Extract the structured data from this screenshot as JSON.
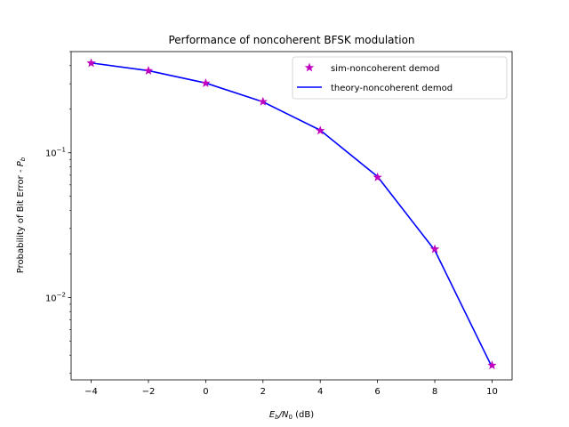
{
  "chart_data": {
    "type": "line",
    "title": "Performance of noncoherent BFSK modulation",
    "xlabel": {
      "main": "E",
      "sub1": "b",
      "slash": "/N",
      "sub2": "0",
      "unit": " (dB)"
    },
    "ylabel": {
      "main": "Probability of Bit Error - ",
      "var": "P",
      "sub": "b"
    },
    "x": [
      -4,
      -2,
      0,
      2,
      4,
      6,
      8,
      10
    ],
    "xlim": [
      -4.7,
      10.7
    ],
    "ylim": [
      0.0027,
      0.5
    ],
    "yscale": "log",
    "xticks": [
      -4,
      -2,
      0,
      2,
      4,
      6,
      8,
      10
    ],
    "xtick_labels": [
      "−4",
      "−2",
      "0",
      "2",
      "4",
      "6",
      "8",
      "10"
    ],
    "yticks": [
      0.01,
      0.1
    ],
    "ytick_base": "10",
    "ytick_exps": [
      "−2",
      "−1"
    ],
    "grid": false,
    "legend_position": "top-right",
    "series": [
      {
        "name": "sim-noncoherent demod",
        "style": "markers",
        "marker": "star",
        "color": "#bf00bf",
        "values": [
          0.4165,
          0.3688,
          0.3025,
          0.2254,
          0.1423,
          0.0677,
          0.0216,
          0.0034
        ]
      },
      {
        "name": "theory-noncoherent demod",
        "style": "line",
        "color": "#0000ff",
        "values": [
          0.4174,
          0.3691,
          0.3033,
          0.2247,
          0.1432,
          0.0685,
          0.0212,
          0.0033
        ]
      }
    ]
  }
}
